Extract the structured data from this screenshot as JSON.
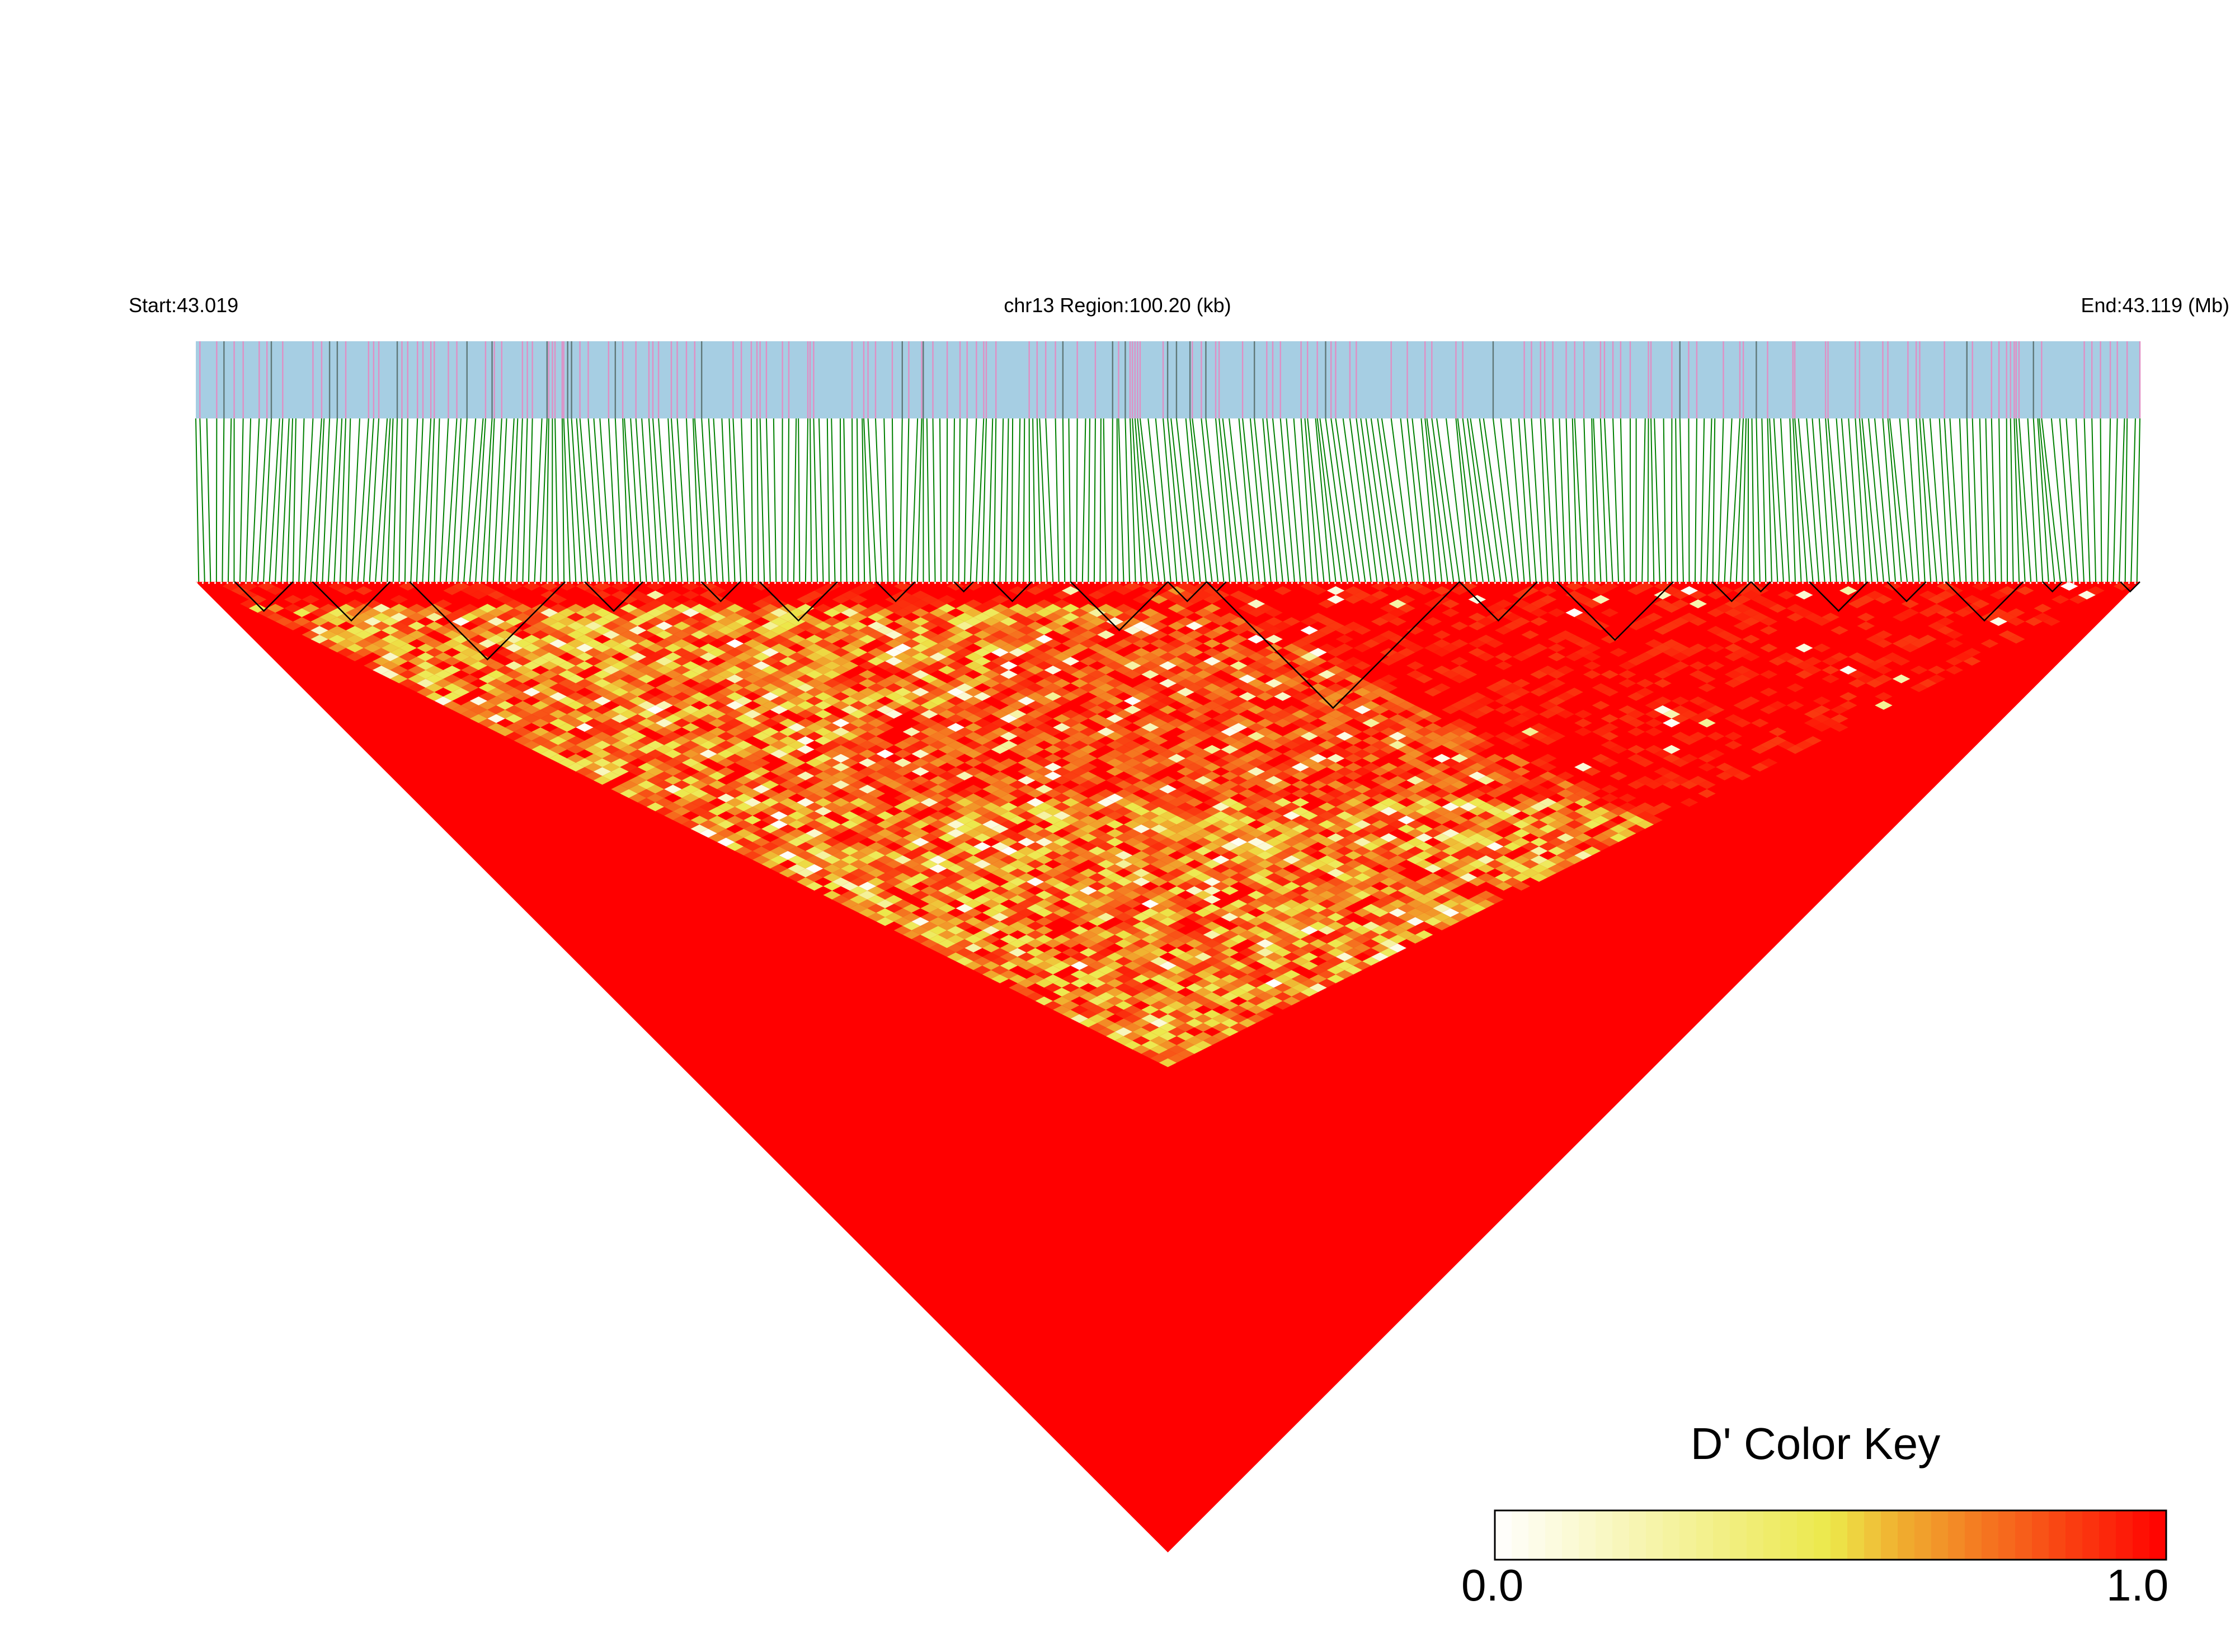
{
  "header": {
    "start_label": "Start:43.019",
    "region_label": "chr13 Region:100.20 (kb)",
    "end_label": "End:43.119 (Mb)"
  },
  "colors": {
    "bar_base": "#a6cee3",
    "bar_snp_marker": "#e08fc4",
    "bar_dark_marker": "#607878",
    "connector_lines": "#008000",
    "block_outline": "#000000",
    "ld_low": "#ffffff",
    "ld_mid": "#ece84a",
    "ld_high": "#ff0000"
  },
  "chart_data": {
    "type": "heatmap",
    "description_type": "LD triangle heatmap (pairwise D')",
    "chromosome": "chr13",
    "region_start_mb": 43.019,
    "region_end_mb": 43.119,
    "region_length_kb": 100.2,
    "n_snps_approx": 330,
    "value_range": [
      0.0,
      1.0
    ],
    "regions": [
      {
        "from_snp_fraction": 0.0,
        "to_snp_fraction": 0.5,
        "offset_fraction_max": 1.0,
        "mean_dprime": 0.72,
        "note": "left half, mixed red/orange/yellow"
      },
      {
        "from_snp_fraction": 0.35,
        "to_snp_fraction": 1.0,
        "offset_fraction_max": 0.45,
        "mean_dprime": 0.97,
        "note": "right half, mostly solid red"
      }
    ],
    "haplotype_blocks_snp_fraction": [
      [
        0.02,
        0.05
      ],
      [
        0.06,
        0.1
      ],
      [
        0.11,
        0.19
      ],
      [
        0.2,
        0.23
      ],
      [
        0.26,
        0.28
      ],
      [
        0.29,
        0.33
      ],
      [
        0.35,
        0.37
      ],
      [
        0.39,
        0.4
      ],
      [
        0.41,
        0.43
      ],
      [
        0.45,
        0.5
      ],
      [
        0.5,
        0.52
      ],
      [
        0.52,
        0.53
      ],
      [
        0.52,
        0.65
      ],
      [
        0.65,
        0.69
      ],
      [
        0.7,
        0.76
      ],
      [
        0.78,
        0.8
      ],
      [
        0.8,
        0.81
      ],
      [
        0.83,
        0.86
      ],
      [
        0.87,
        0.89
      ],
      [
        0.9,
        0.94
      ],
      [
        0.95,
        0.96
      ],
      [
        0.99,
        1.0
      ]
    ],
    "legend": {
      "title": "D' Color Key",
      "min_label": "0.0",
      "max_label": "1.0",
      "gradient_stops": [
        {
          "value": 0.0,
          "color": "#ffffff"
        },
        {
          "value": 0.5,
          "color": "#ece84a"
        },
        {
          "value": 0.6,
          "color": "#f0b030"
        },
        {
          "value": 1.0,
          "color": "#ff0000"
        }
      ]
    }
  }
}
